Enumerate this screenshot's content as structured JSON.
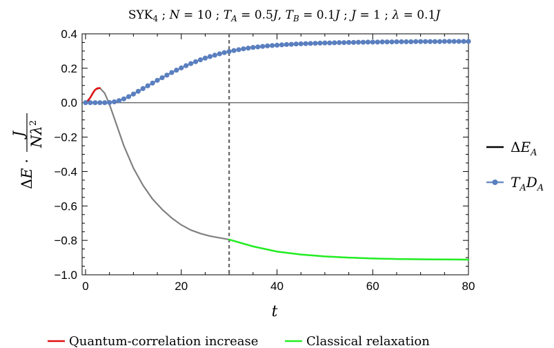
{
  "chart_data": {
    "type": "line",
    "title": "SYK₄ ; N = 10 ; T_A = 0.5J, T_B = 0.1J ; J = 1 ; λ = 0.1J",
    "xlabel": "t",
    "ylabel": "ΔE · J / (Nλ²)",
    "xlim": [
      0,
      80
    ],
    "ylim": [
      -1.0,
      0.4
    ],
    "x_ticks": [
      "0",
      "20",
      "40",
      "60",
      "80"
    ],
    "y_ticks": [
      "-1.0",
      "-0.8",
      "-0.6",
      "-0.4",
      "-0.2",
      "0.0",
      "0.2",
      "0.4"
    ],
    "vline_x": 30,
    "legend_right": [
      "ΔE_A",
      "T_A D_A"
    ],
    "legend_bottom": [
      "Quantum-correlation increase",
      "Classical relaxation"
    ],
    "colors": {
      "deltaE": "#808080",
      "quantum": "#e01010",
      "classical": "#22ee22",
      "tada": "#6b8fc4",
      "tada_marker": "#5a7fbf",
      "zero_line": "#555555",
      "vline": "#666666"
    },
    "series": [
      {
        "name": "ΔE_A",
        "x": [
          0,
          1,
          2,
          3,
          4,
          5,
          6,
          7,
          8,
          10,
          12,
          14,
          16,
          18,
          20,
          22,
          24,
          26,
          28,
          30,
          35,
          40,
          45,
          50,
          55,
          60,
          65,
          70,
          75,
          80
        ],
        "y": [
          0.0,
          0.03,
          0.075,
          0.085,
          0.055,
          -0.01,
          -0.09,
          -0.17,
          -0.25,
          -0.38,
          -0.48,
          -0.56,
          -0.62,
          -0.67,
          -0.71,
          -0.74,
          -0.76,
          -0.775,
          -0.785,
          -0.795,
          -0.835,
          -0.865,
          -0.882,
          -0.893,
          -0.9,
          -0.905,
          -0.908,
          -0.91,
          -0.911,
          -0.912
        ]
      },
      {
        "name": "T_A D_A",
        "x": [
          0,
          1,
          2,
          3,
          4,
          5,
          6,
          7,
          8,
          9,
          10,
          11,
          12,
          13,
          14,
          15,
          16,
          17,
          18,
          19,
          20,
          21,
          22,
          23,
          24,
          25,
          26,
          27,
          28,
          29,
          30,
          31,
          32,
          33,
          34,
          35,
          36,
          37,
          38,
          39,
          40,
          41,
          42,
          43,
          44,
          45,
          46,
          47,
          48,
          49,
          50,
          51,
          52,
          53,
          54,
          55,
          56,
          57,
          58,
          59,
          60,
          61,
          62,
          63,
          64,
          65,
          66,
          67,
          68,
          69,
          70,
          71,
          72,
          73,
          74,
          75,
          76,
          77,
          78,
          79,
          80
        ],
        "y": [
          0.0,
          0.0,
          0.0,
          0.0,
          0.0,
          0.001,
          0.005,
          0.012,
          0.022,
          0.035,
          0.05,
          0.066,
          0.082,
          0.098,
          0.114,
          0.13,
          0.145,
          0.16,
          0.175,
          0.189,
          0.202,
          0.215,
          0.227,
          0.238,
          0.249,
          0.259,
          0.268,
          0.276,
          0.284,
          0.291,
          0.297,
          0.303,
          0.308,
          0.313,
          0.317,
          0.321,
          0.324,
          0.327,
          0.33,
          0.332,
          0.334,
          0.336,
          0.338,
          0.339,
          0.341,
          0.342,
          0.343,
          0.344,
          0.345,
          0.346,
          0.347,
          0.347,
          0.348,
          0.349,
          0.349,
          0.35,
          0.35,
          0.351,
          0.351,
          0.352,
          0.352,
          0.352,
          0.353,
          0.353,
          0.353,
          0.354,
          0.354,
          0.354,
          0.354,
          0.355,
          0.355,
          0.355,
          0.355,
          0.355,
          0.355,
          0.356,
          0.356,
          0.356,
          0.356,
          0.356,
          0.356
        ]
      },
      {
        "name": "Quantum-correlation increase",
        "x": [
          0,
          0.5,
          1,
          1.5,
          2,
          2.5,
          3
        ],
        "y": [
          0.0,
          0.01,
          0.03,
          0.055,
          0.075,
          0.084,
          0.085
        ]
      },
      {
        "name": "Classical relaxation",
        "x": [
          30,
          35,
          40,
          45,
          50,
          55,
          60,
          65,
          70,
          75,
          80
        ],
        "y": [
          -0.795,
          -0.835,
          -0.865,
          -0.882,
          -0.893,
          -0.9,
          -0.905,
          -0.908,
          -0.91,
          -0.911,
          -0.912
        ]
      }
    ]
  }
}
